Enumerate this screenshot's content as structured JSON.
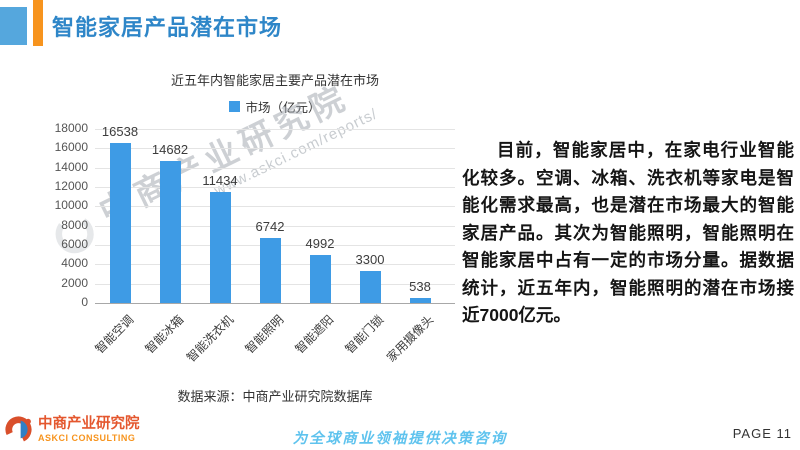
{
  "header": {
    "title": "智能家居产品潜在市场"
  },
  "chart": {
    "source": "数据来源：中商产业研究院数据库"
  },
  "chart_data": {
    "type": "bar",
    "title": "近五年内智能家居主要产品潜在市场",
    "series_name": "市场（亿元）",
    "categories": [
      "智能空调",
      "智能冰箱",
      "智能洗衣机",
      "智能照明",
      "智能遮阳",
      "智能门锁",
      "家用摄像头"
    ],
    "values": [
      16538,
      14682,
      11434,
      6742,
      4992,
      3300,
      538
    ],
    "xlabel": "",
    "ylabel": "",
    "ylim": [
      0,
      18000
    ],
    "ytick_step": 2000,
    "grid": true,
    "legend_position": "top",
    "bar_color": "#3E9BE5"
  },
  "watermark": {
    "line1": "中商产业研究院",
    "line2": "www.askci.com/reports/"
  },
  "article": {
    "text": "目前，智能家居中，在家电行业智能化较多。空调、冰箱、洗衣机等家电是智能化需求最高，也是潜在市场最大的智能家居产品。其次为智能照明，智能照明在智能家居中占有一定的市场分量。据数据统计，近五年内，智能照明的潜在市场接近7000亿元。"
  },
  "footer": {
    "logo_name": "中商产业研究院",
    "logo_sub": "ASKCI CONSULTING",
    "tagline": "为全球商业领袖提供决策咨询",
    "page_label": "PAGE 11"
  },
  "colors": {
    "accent_blue": "#55A7DD",
    "accent_orange": "#F7941E",
    "title_blue": "#2E86C8",
    "bar_blue": "#3E9BE5",
    "logo_red": "#E4572E",
    "tagline_blue": "#5FC3EE"
  }
}
